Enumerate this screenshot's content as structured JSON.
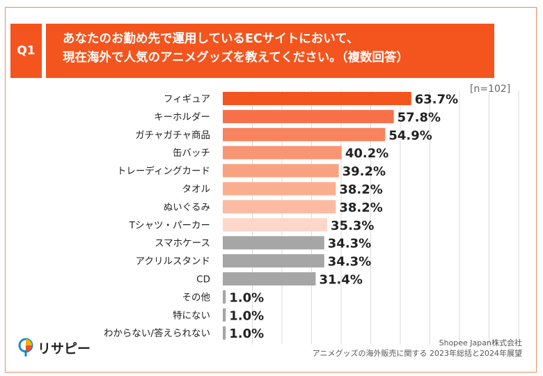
{
  "question": {
    "number": "Q1",
    "line1": "あなたのお勤め先で運用しているECサイトにおいて、",
    "line2": "現在海外で人気のアニメグッズを教えてください。（複数回答）"
  },
  "sample_size": "[n=102]",
  "chart_data": {
    "type": "bar",
    "orientation": "horizontal",
    "title": "現在海外で人気のアニメグッズ（複数回答）",
    "xlabel": "",
    "ylabel": "",
    "xlim": [
      0,
      100
    ],
    "grid": true,
    "value_suffix": "%",
    "categories": [
      "フィギュア",
      "キーホルダー",
      "ガチャガチャ商品",
      "缶バッチ",
      "トレーディングカード",
      "タオル",
      "ぬいぐるみ",
      "Tシャツ・パーカー",
      "スマホケース",
      "アクリルスタンド",
      "CD",
      "その他",
      "特にない",
      "わからない/答えられない"
    ],
    "values": [
      63.7,
      57.8,
      54.9,
      40.2,
      39.2,
      38.2,
      38.2,
      35.3,
      34.3,
      34.3,
      31.4,
      1.0,
      1.0,
      1.0
    ],
    "value_labels": [
      "63.7%",
      "57.8%",
      "54.9%",
      "40.2%",
      "39.2%",
      "38.2%",
      "38.2%",
      "35.3%",
      "34.3%",
      "34.3%",
      "31.4%",
      "1.0%",
      "1.0%",
      "1.0%"
    ],
    "colors": [
      "#f4541d",
      "#f6714a",
      "#f7835f",
      "#f89674",
      "#f9a282",
      "#faae90",
      "#fbbaa2",
      "#fdd7c9",
      "#a6a6a6",
      "#a6a6a6",
      "#a6a6a6",
      "#a6a6a6",
      "#a6a6a6",
      "#a6a6a6"
    ],
    "gridline_color": "#d9d9d9"
  },
  "logo": {
    "text": "リサピー"
  },
  "source": {
    "line1": "Shopee Japan株式会社",
    "line2": "アニメグッズの海外販売に関する 2023年総括と2024年展望"
  }
}
